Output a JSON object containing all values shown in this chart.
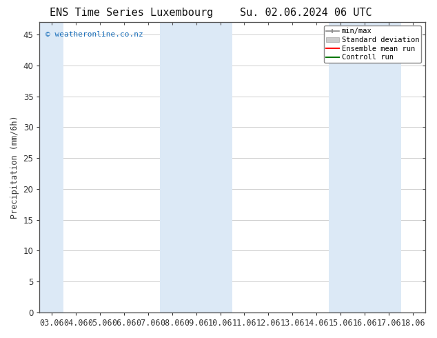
{
  "title_left": "ENS Time Series Luxembourg",
  "title_right": "Su. 02.06.2024 06 UTC",
  "ylabel": "Precipitation (mm/6h)",
  "watermark": "© weatheronline.co.nz",
  "ylim": [
    0,
    47
  ],
  "yticks": [
    0,
    5,
    10,
    15,
    20,
    25,
    30,
    35,
    40,
    45
  ],
  "xtick_labels": [
    "03.06",
    "04.06",
    "05.06",
    "06.06",
    "07.06",
    "08.06",
    "09.06",
    "10.06",
    "11.06",
    "12.06",
    "13.06",
    "14.06",
    "15.06",
    "16.06",
    "17.06",
    "18.06"
  ],
  "shaded_regions": [
    {
      "x_start": 0,
      "x_end": 0.5,
      "color": "#ddeaf7"
    },
    {
      "x_start": 5,
      "x_end": 7,
      "color": "#ddeaf7"
    },
    {
      "x_start": 12,
      "x_end": 14,
      "color": "#ddeaf7"
    }
  ],
  "legend_entries": [
    {
      "label": "min/max",
      "color": "#999999",
      "style": "errorbar"
    },
    {
      "label": "Standard deviation",
      "color": "#cccccc",
      "style": "box"
    },
    {
      "label": "Ensemble mean run",
      "color": "#ff0000",
      "style": "line"
    },
    {
      "label": "Controll run",
      "color": "#008000",
      "style": "line"
    }
  ],
  "background_color": "#ffffff",
  "grid_color": "#c8c8c8",
  "spine_color": "#555555",
  "tick_color": "#333333",
  "title_fontsize": 11,
  "label_fontsize": 8.5,
  "watermark_color": "#1a6fba",
  "n_xticks": 16,
  "xlim": [
    0,
    15
  ]
}
